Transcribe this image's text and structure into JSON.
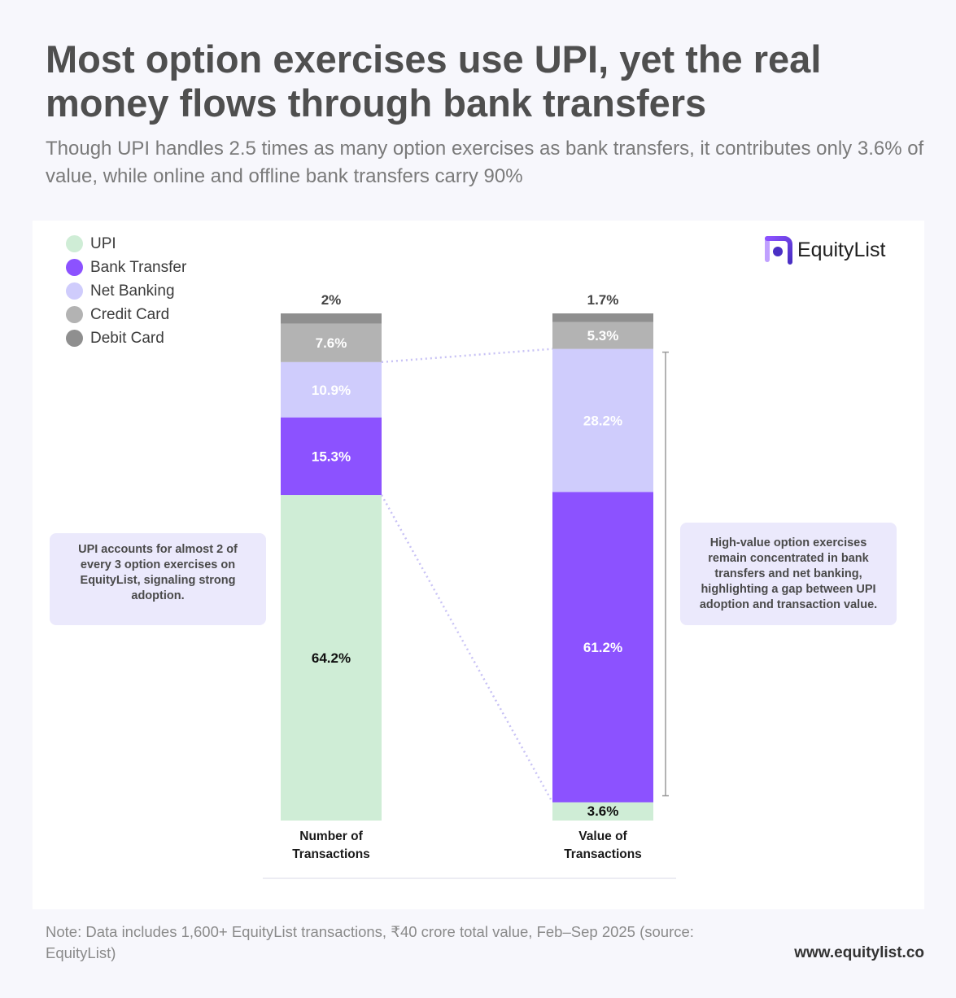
{
  "title": "Most option exercises use UPI, yet the real money flows through bank transfers",
  "subtitle": "Though UPI handles 2.5 times as many option exercises as bank transfers, it contributes only 3.6% of value, while online and offline bank transfers carry 90%",
  "brand": "EquityList",
  "colors": {
    "upi": "#cfedd6",
    "bank_transfer": "#8c52ff",
    "net_banking": "#cfccfc",
    "credit_card": "#b3b3b3",
    "debit_card": "#8f8f8f",
    "connector": "#c8c2f5"
  },
  "legend": [
    {
      "label": "UPI",
      "color": "#cfedd6"
    },
    {
      "label": "Bank Transfer",
      "color": "#8c52ff"
    },
    {
      "label": "Net Banking",
      "color": "#cfccfc"
    },
    {
      "label": "Credit Card",
      "color": "#b3b3b3"
    },
    {
      "label": "Debit Card",
      "color": "#8f8f8f"
    }
  ],
  "chart_data": {
    "type": "bar",
    "stacked": true,
    "normalized": true,
    "categories": [
      "Number of Transactions",
      "Value of Transactions"
    ],
    "category_labels": [
      [
        "Number of",
        "Transactions"
      ],
      [
        "Value of",
        "Transactions"
      ]
    ],
    "series": [
      {
        "name": "UPI",
        "values": [
          64.2,
          3.6
        ],
        "labels": [
          "64.2%",
          "3.6%"
        ]
      },
      {
        "name": "Bank Transfer",
        "values": [
          15.3,
          61.2
        ],
        "labels": [
          "15.3%",
          "61.2%"
        ]
      },
      {
        "name": "Net Banking",
        "values": [
          10.9,
          28.2
        ],
        "labels": [
          "10.9%",
          "28.2%"
        ]
      },
      {
        "name": "Credit Card",
        "values": [
          7.6,
          5.3
        ],
        "labels": [
          "7.6%",
          "5.3%"
        ]
      },
      {
        "name": "Debit Card",
        "values": [
          2,
          1.7
        ],
        "labels": [
          "2%",
          "1.7%"
        ]
      }
    ],
    "ylim": [
      0,
      100
    ],
    "unit": "%"
  },
  "callouts": {
    "left": "UPI accounts for almost 2 of every 3 option exercises on EquityList, signaling strong adoption.",
    "right": "High-value option exercises remain concentrated in bank transfers and net banking, highlighting a gap between UPI adoption and transaction value."
  },
  "note": "Note: Data includes 1,600+ EquityList transactions, ₹40 crore total value, Feb–Sep 2025 (source: EquityList)",
  "website": "www.equitylist.co"
}
